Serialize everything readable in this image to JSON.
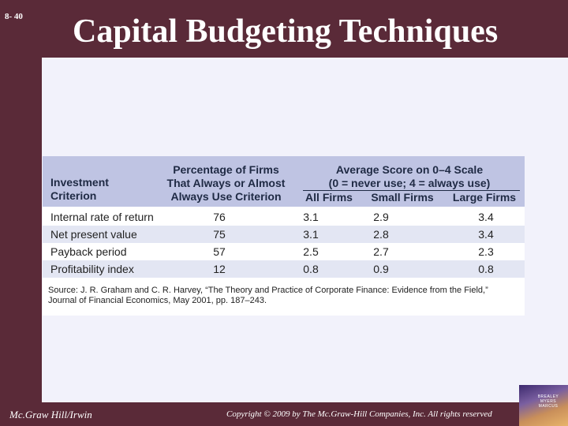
{
  "slide": {
    "number": "8- 40",
    "title": "Capital Budgeting Techniques"
  },
  "table": {
    "headers": {
      "criterion": [
        "Investment",
        "Criterion"
      ],
      "percentage": [
        "Percentage of Firms",
        "That Always or Almost",
        "Always Use Criterion"
      ],
      "average": [
        "Average Score on 0–4 Scale",
        "(0 = never use; 4 = always use)"
      ],
      "sub": [
        "All Firms",
        "Small Firms",
        "Large Firms"
      ]
    },
    "rows": [
      {
        "criterion": "Internal rate of return",
        "pct": "76",
        "all": "3.1",
        "small": "2.9",
        "large": "3.4"
      },
      {
        "criterion": "Net present value",
        "pct": "75",
        "all": "3.1",
        "small": "2.8",
        "large": "3.4"
      },
      {
        "criterion": "Payback period",
        "pct": "57",
        "all": "2.5",
        "small": "2.7",
        "large": "2.3"
      },
      {
        "criterion": "Profitability index",
        "pct": "12",
        "all": "0.8",
        "small": "0.9",
        "large": "0.8"
      }
    ],
    "source_line1": "Source: J. R. Graham and C. R. Harvey, “The Theory and Practice of Corporate Finance: Evidence from the Field,”",
    "source_line2": "Journal of Financial Economics, May 2001, pp. 187–243."
  },
  "footer": {
    "publisher": "Mc.Graw Hill/Irwin",
    "copyright": "Copyright © 2009 by The Mc.Graw-Hill Companies, Inc. All rights reserved",
    "book_authors": [
      "BREALEY",
      "MYERS",
      "MARCUS"
    ]
  },
  "colors": {
    "frame": "#5a2a38",
    "content_bg": "#f2f2fb",
    "table_header": "#bfc4e3",
    "row_alt": "#e3e6f3"
  }
}
